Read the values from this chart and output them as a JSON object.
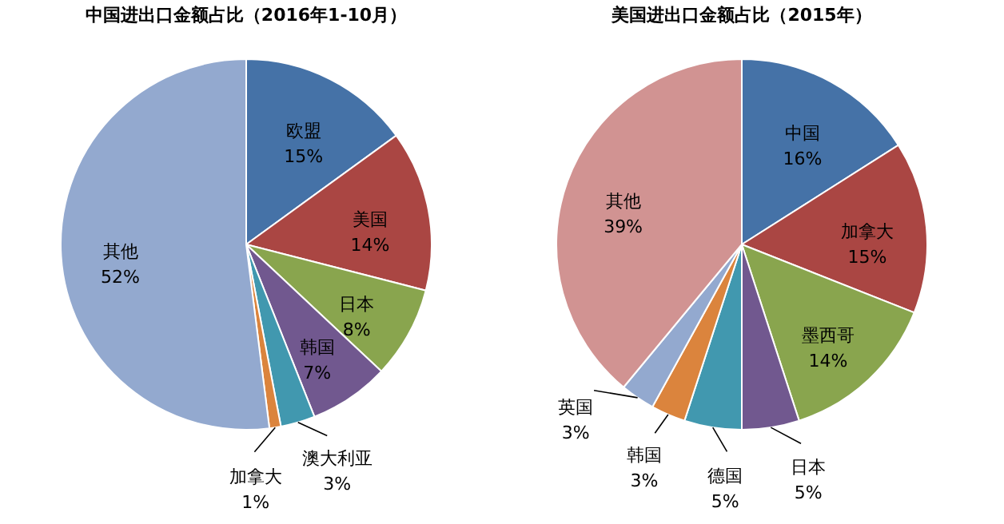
{
  "chart_data": [
    {
      "type": "pie",
      "title": "中国进出口金额占比（2016年1-10月）",
      "categories": [
        "欧盟",
        "美国",
        "日本",
        "韩国",
        "澳大利亚",
        "加拿大",
        "其他"
      ],
      "values": [
        15,
        14,
        8,
        7,
        3,
        1,
        52
      ],
      "value_labels": [
        "15%",
        "14%",
        "8%",
        "7%",
        "3%",
        "1%",
        "52%"
      ],
      "colors": [
        "#4572a7",
        "#aa4643",
        "#89a54e",
        "#71588f",
        "#4198af",
        "#db843d",
        "#93a9cf"
      ]
    },
    {
      "type": "pie",
      "title": "美国进出口金额占比（2015年）",
      "categories": [
        "中国",
        "加拿大",
        "墨西哥",
        "日本",
        "德国",
        "韩国",
        "英国",
        "其他"
      ],
      "values": [
        16,
        15,
        14,
        5,
        5,
        3,
        3,
        39
      ],
      "value_labels": [
        "16%",
        "15%",
        "14%",
        "5%",
        "5%",
        "3%",
        "3%",
        "39%"
      ],
      "colors": [
        "#4572a7",
        "#aa4643",
        "#89a54e",
        "#71588f",
        "#4198af",
        "#db843d",
        "#93a9cf",
        "#d19392"
      ]
    }
  ]
}
